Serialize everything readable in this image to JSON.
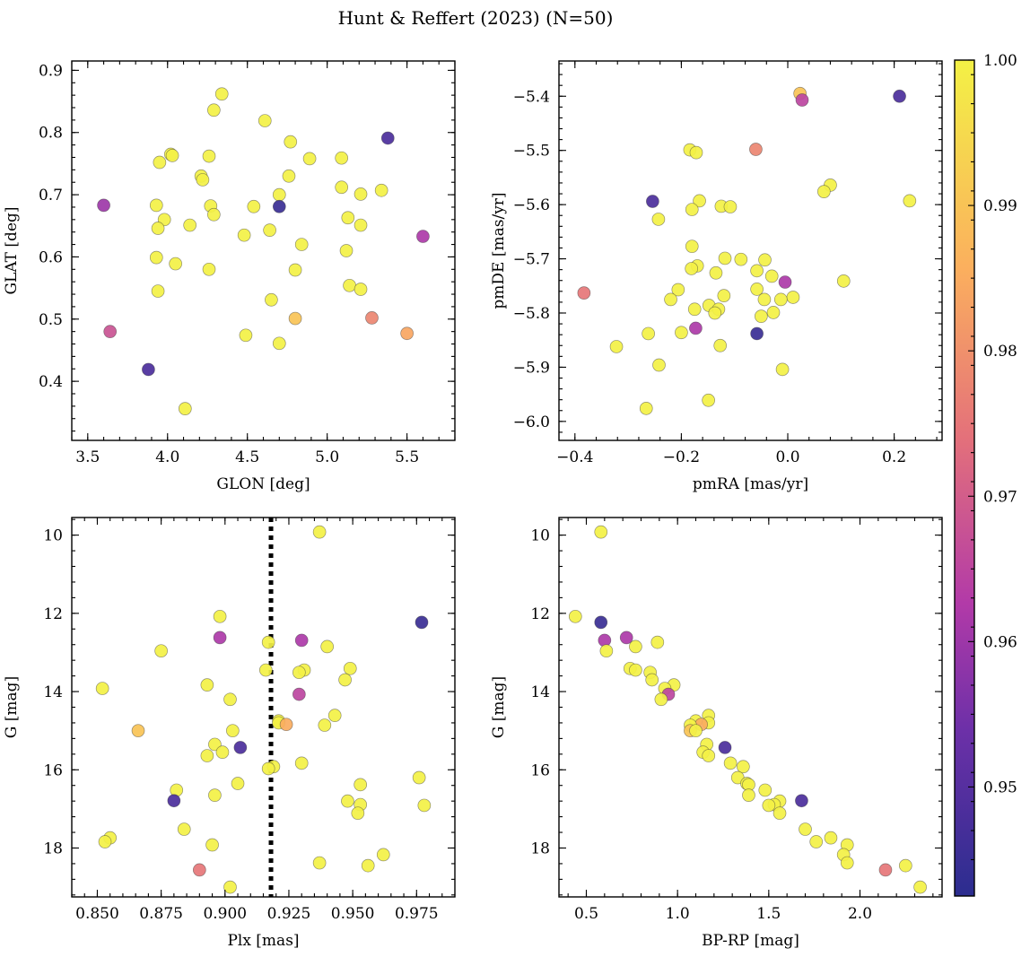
{
  "title": "Hunt & Reffert (2023) (N=50)",
  "colors": {
    "low": "#3a3496",
    "mid": "#b23aa8",
    "high": "#f3f145",
    "frame": "#000000",
    "vline": "#000000"
  },
  "colorbar": {
    "range": [
      0.9425,
      1.0
    ],
    "ticks": [
      0.95,
      0.96,
      0.97,
      0.98,
      0.99,
      1.0
    ],
    "tick_labels": [
      "0.95",
      "0.96",
      "0.97",
      "0.98",
      "0.99",
      "1.00"
    ]
  },
  "chart_data": [
    {
      "type": "scatter",
      "xlabel": "GLON [deg]",
      "ylabel": "GLAT [deg]",
      "xlim": [
        3.4,
        5.8
      ],
      "ylim": [
        0.305,
        0.915
      ],
      "xticks": [
        3.5,
        4.0,
        4.5,
        5.0,
        5.5
      ],
      "xtick_labels": [
        "3.5",
        "4.0",
        "4.5",
        "5.0",
        "5.5"
      ],
      "yticks": [
        0.4,
        0.5,
        0.6,
        0.7,
        0.8,
        0.9
      ],
      "ytick_labels": [
        "0.4",
        "0.5",
        "0.6",
        "0.7",
        "0.8",
        "0.9"
      ],
      "points": [
        [
          4.34,
          0.862,
          1.0
        ],
        [
          4.29,
          0.836,
          1.0
        ],
        [
          4.61,
          0.819,
          1.0
        ],
        [
          5.38,
          0.791,
          0.948
        ],
        [
          4.77,
          0.785,
          1.0
        ],
        [
          4.02,
          0.765,
          1.0
        ],
        [
          4.03,
          0.763,
          1.0
        ],
        [
          4.26,
          0.762,
          1.0
        ],
        [
          4.89,
          0.758,
          1.0
        ],
        [
          5.09,
          0.759,
          1.0
        ],
        [
          3.95,
          0.752,
          1.0
        ],
        [
          4.21,
          0.73,
          1.0
        ],
        [
          4.76,
          0.73,
          1.0
        ],
        [
          4.22,
          0.724,
          1.0
        ],
        [
          5.09,
          0.712,
          1.0
        ],
        [
          5.34,
          0.707,
          1.0
        ],
        [
          4.7,
          0.7,
          1.0
        ],
        [
          5.21,
          0.701,
          1.0
        ],
        [
          3.6,
          0.683,
          0.96
        ],
        [
          3.93,
          0.683,
          1.0
        ],
        [
          4.27,
          0.682,
          1.0
        ],
        [
          4.54,
          0.681,
          1.0
        ],
        [
          4.7,
          0.681,
          0.945
        ],
        [
          4.29,
          0.668,
          1.0
        ],
        [
          5.13,
          0.663,
          1.0
        ],
        [
          3.98,
          0.66,
          1.0
        ],
        [
          4.14,
          0.651,
          1.0
        ],
        [
          5.21,
          0.651,
          1.0
        ],
        [
          3.94,
          0.646,
          1.0
        ],
        [
          4.64,
          0.643,
          1.0
        ],
        [
          4.48,
          0.635,
          1.0
        ],
        [
          5.6,
          0.633,
          0.962
        ],
        [
          4.84,
          0.62,
          1.0
        ],
        [
          5.12,
          0.61,
          1.0
        ],
        [
          3.93,
          0.599,
          1.0
        ],
        [
          4.05,
          0.589,
          1.0
        ],
        [
          4.26,
          0.58,
          1.0
        ],
        [
          4.8,
          0.579,
          1.0
        ],
        [
          5.14,
          0.554,
          1.0
        ],
        [
          5.21,
          0.548,
          1.0
        ],
        [
          3.94,
          0.545,
          1.0
        ],
        [
          4.65,
          0.531,
          1.0
        ],
        [
          4.8,
          0.501,
          0.99
        ],
        [
          5.28,
          0.502,
          0.978
        ],
        [
          3.64,
          0.48,
          0.968
        ],
        [
          5.5,
          0.477,
          0.984
        ],
        [
          4.49,
          0.474,
          1.0
        ],
        [
          4.7,
          0.461,
          1.0
        ],
        [
          3.88,
          0.419,
          0.948
        ],
        [
          4.11,
          0.356,
          1.0
        ]
      ]
    },
    {
      "type": "scatter",
      "xlabel": "pmRA [mas/yr]",
      "ylabel": "pmDE [mas/yr]",
      "xlim": [
        -0.43,
        0.29
      ],
      "ylim": [
        -6.035,
        -5.335
      ],
      "xticks": [
        -0.4,
        -0.2,
        0.0,
        0.2
      ],
      "xtick_labels": [
        "−0.4",
        "−0.2",
        "0.0",
        "0.2"
      ],
      "yticks": [
        -6.0,
        -5.9,
        -5.8,
        -5.7,
        -5.6,
        -5.5,
        -5.4
      ],
      "ytick_labels": [
        "−6.0",
        "−5.9",
        "−5.8",
        "−5.7",
        "−5.6",
        "−5.5",
        "−5.4"
      ],
      "points": [
        [
          0.023,
          -5.395,
          0.99
        ],
        [
          0.027,
          -5.407,
          0.965
        ],
        [
          0.21,
          -5.4,
          0.948
        ],
        [
          -0.06,
          -5.498,
          0.978
        ],
        [
          -0.184,
          -5.499,
          1.0
        ],
        [
          -0.172,
          -5.504,
          1.0
        ],
        [
          0.08,
          -5.564,
          1.0
        ],
        [
          0.068,
          -5.576,
          1.0
        ],
        [
          0.229,
          -5.593,
          1.0
        ],
        [
          -0.254,
          -5.594,
          0.948
        ],
        [
          -0.166,
          -5.593,
          1.0
        ],
        [
          -0.125,
          -5.603,
          1.0
        ],
        [
          -0.108,
          -5.604,
          1.0
        ],
        [
          -0.18,
          -5.609,
          1.0
        ],
        [
          -0.243,
          -5.627,
          1.0
        ],
        [
          -0.18,
          -5.677,
          1.0
        ],
        [
          -0.118,
          -5.699,
          1.0
        ],
        [
          -0.088,
          -5.701,
          1.0
        ],
        [
          -0.043,
          -5.702,
          1.0
        ],
        [
          -0.17,
          -5.713,
          1.0
        ],
        [
          -0.181,
          -5.718,
          1.0
        ],
        [
          -0.058,
          -5.722,
          1.0
        ],
        [
          -0.03,
          -5.732,
          1.0
        ],
        [
          -0.005,
          -5.743,
          0.962
        ],
        [
          0.105,
          -5.741,
          1.0
        ],
        [
          -0.135,
          -5.726,
          1.0
        ],
        [
          -0.058,
          -5.756,
          1.0
        ],
        [
          -0.206,
          -5.757,
          1.0
        ],
        [
          -0.383,
          -5.763,
          0.975
        ],
        [
          -0.12,
          -5.768,
          1.0
        ],
        [
          0.01,
          -5.771,
          1.0
        ],
        [
          -0.013,
          -5.775,
          1.0
        ],
        [
          -0.044,
          -5.775,
          1.0
        ],
        [
          -0.22,
          -5.775,
          1.0
        ],
        [
          -0.148,
          -5.786,
          1.0
        ],
        [
          -0.175,
          -5.793,
          1.0
        ],
        [
          -0.13,
          -5.793,
          1.0
        ],
        [
          -0.137,
          -5.8,
          1.0
        ],
        [
          -0.027,
          -5.799,
          1.0
        ],
        [
          -0.05,
          -5.806,
          1.0
        ],
        [
          -0.173,
          -5.828,
          0.962
        ],
        [
          -0.2,
          -5.836,
          1.0
        ],
        [
          -0.058,
          -5.838,
          0.945
        ],
        [
          -0.262,
          -5.838,
          1.0
        ],
        [
          -0.127,
          -5.86,
          1.0
        ],
        [
          -0.322,
          -5.862,
          1.0
        ],
        [
          -0.242,
          -5.896,
          1.0
        ],
        [
          -0.01,
          -5.904,
          1.0
        ],
        [
          -0.149,
          -5.961,
          1.0
        ],
        [
          -0.266,
          -5.976,
          1.0
        ]
      ]
    },
    {
      "type": "scatter",
      "xlabel": "Plx [mas]",
      "ylabel": "G [mag]",
      "xlim": [
        0.84,
        0.99
      ],
      "ylim": [
        19.25,
        9.55
      ],
      "y_inverted": true,
      "vline_x": 0.918,
      "xticks": [
        0.85,
        0.875,
        0.9,
        0.925,
        0.95,
        0.975
      ],
      "xtick_labels": [
        "0.850",
        "0.875",
        "0.900",
        "0.925",
        "0.950",
        "0.975"
      ],
      "yticks": [
        10,
        12,
        14,
        16,
        18
      ],
      "ytick_labels": [
        "10",
        "12",
        "14",
        "16",
        "18"
      ],
      "points": [
        [
          0.937,
          9.92,
          1.0
        ],
        [
          0.898,
          12.08,
          1.0
        ],
        [
          0.977,
          12.23,
          0.945
        ],
        [
          0.898,
          12.62,
          0.962
        ],
        [
          0.93,
          12.69,
          0.962
        ],
        [
          0.917,
          12.74,
          1.0
        ],
        [
          0.94,
          12.85,
          1.0
        ],
        [
          0.875,
          12.96,
          1.0
        ],
        [
          0.916,
          13.45,
          1.0
        ],
        [
          0.931,
          13.45,
          1.0
        ],
        [
          0.949,
          13.41,
          1.0
        ],
        [
          0.929,
          13.51,
          1.0
        ],
        [
          0.947,
          13.7,
          1.0
        ],
        [
          0.893,
          13.83,
          1.0
        ],
        [
          0.852,
          13.92,
          1.0
        ],
        [
          0.929,
          14.07,
          0.965
        ],
        [
          0.902,
          14.2,
          1.0
        ],
        [
          0.943,
          14.61,
          1.0
        ],
        [
          0.921,
          14.75,
          1.0
        ],
        [
          0.921,
          14.8,
          1.0
        ],
        [
          0.924,
          14.84,
          0.985
        ],
        [
          0.939,
          14.86,
          1.0
        ],
        [
          0.866,
          15.0,
          0.99
        ],
        [
          0.903,
          15.0,
          1.0
        ],
        [
          0.896,
          15.35,
          1.0
        ],
        [
          0.906,
          15.43,
          0.948
        ],
        [
          0.899,
          15.55,
          1.0
        ],
        [
          0.893,
          15.64,
          1.0
        ],
        [
          0.93,
          15.83,
          1.0
        ],
        [
          0.919,
          15.92,
          1.0
        ],
        [
          0.917,
          15.97,
          1.0
        ],
        [
          0.976,
          16.2,
          1.0
        ],
        [
          0.905,
          16.35,
          1.0
        ],
        [
          0.953,
          16.38,
          1.0
        ],
        [
          0.881,
          16.52,
          1.0
        ],
        [
          0.896,
          16.65,
          1.0
        ],
        [
          0.88,
          16.79,
          0.948
        ],
        [
          0.948,
          16.8,
          1.0
        ],
        [
          0.953,
          16.89,
          1.0
        ],
        [
          0.978,
          16.91,
          1.0
        ],
        [
          0.952,
          17.11,
          1.0
        ],
        [
          0.884,
          17.52,
          1.0
        ],
        [
          0.855,
          17.74,
          1.0
        ],
        [
          0.853,
          17.84,
          1.0
        ],
        [
          0.895,
          17.92,
          1.0
        ],
        [
          0.962,
          18.17,
          1.0
        ],
        [
          0.937,
          18.38,
          1.0
        ],
        [
          0.956,
          18.45,
          1.0
        ],
        [
          0.89,
          18.56,
          0.975
        ],
        [
          0.902,
          19.0,
          1.0
        ]
      ]
    },
    {
      "type": "scatter",
      "xlabel": "BP-RP [mag]",
      "ylabel": "G [mag]",
      "xlim": [
        0.35,
        2.45
      ],
      "ylim": [
        19.25,
        9.55
      ],
      "y_inverted": true,
      "xticks": [
        0.5,
        1.0,
        1.5,
        2.0
      ],
      "xtick_labels": [
        "0.5",
        "1.0",
        "1.5",
        "2.0"
      ],
      "yticks": [
        10,
        12,
        14,
        16,
        18
      ],
      "ytick_labels": [
        "10",
        "12",
        "14",
        "16",
        "18"
      ],
      "points": [
        [
          0.58,
          9.92,
          1.0
        ],
        [
          0.44,
          12.08,
          1.0
        ],
        [
          0.58,
          12.23,
          0.945
        ],
        [
          0.72,
          12.62,
          0.962
        ],
        [
          0.6,
          12.69,
          0.962
        ],
        [
          0.89,
          12.74,
          1.0
        ],
        [
          0.77,
          12.85,
          1.0
        ],
        [
          0.61,
          12.96,
          1.0
        ],
        [
          0.74,
          13.41,
          1.0
        ],
        [
          0.77,
          13.45,
          1.0
        ],
        [
          0.85,
          13.51,
          1.0
        ],
        [
          0.86,
          13.7,
          1.0
        ],
        [
          0.98,
          13.83,
          1.0
        ],
        [
          0.93,
          13.92,
          1.0
        ],
        [
          0.95,
          14.07,
          0.965
        ],
        [
          0.91,
          14.2,
          1.0
        ],
        [
          1.17,
          14.61,
          1.0
        ],
        [
          1.1,
          14.75,
          1.0
        ],
        [
          1.17,
          14.8,
          1.0
        ],
        [
          1.13,
          14.84,
          0.985
        ],
        [
          1.07,
          14.86,
          1.0
        ],
        [
          1.07,
          15.0,
          0.99
        ],
        [
          1.1,
          15.0,
          1.0
        ],
        [
          1.16,
          15.35,
          1.0
        ],
        [
          1.26,
          15.43,
          0.948
        ],
        [
          1.14,
          15.55,
          1.0
        ],
        [
          1.17,
          15.64,
          1.0
        ],
        [
          1.29,
          15.83,
          1.0
        ],
        [
          1.36,
          15.92,
          1.0
        ],
        [
          1.33,
          16.2,
          1.0
        ],
        [
          1.38,
          16.35,
          1.0
        ],
        [
          1.39,
          16.38,
          1.0
        ],
        [
          1.48,
          16.52,
          1.0
        ],
        [
          1.39,
          16.65,
          1.0
        ],
        [
          1.68,
          16.79,
          0.948
        ],
        [
          1.56,
          16.8,
          1.0
        ],
        [
          1.53,
          16.89,
          1.0
        ],
        [
          1.5,
          16.91,
          1.0
        ],
        [
          1.56,
          17.11,
          1.0
        ],
        [
          1.7,
          17.52,
          1.0
        ],
        [
          1.84,
          17.74,
          1.0
        ],
        [
          1.76,
          17.84,
          1.0
        ],
        [
          1.93,
          17.92,
          1.0
        ],
        [
          1.91,
          18.17,
          1.0
        ],
        [
          1.93,
          18.38,
          1.0
        ],
        [
          2.25,
          18.45,
          1.0
        ],
        [
          2.14,
          18.56,
          0.975
        ],
        [
          2.33,
          19.0,
          1.0
        ]
      ]
    }
  ]
}
